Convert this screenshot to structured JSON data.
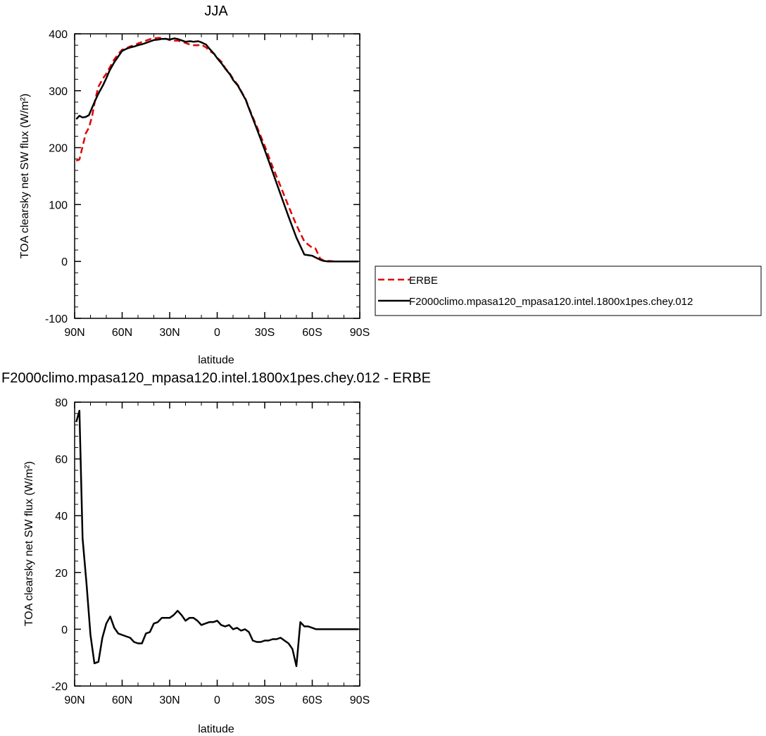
{
  "chart_data": [
    {
      "type": "line",
      "title": "JJA",
      "xlabel": "latitude",
      "ylabel": "TOA clearsky net SW flux (W/m²)",
      "xlim": [
        90,
        -90
      ],
      "ylim": [
        -100,
        400
      ],
      "x_ticks": [
        {
          "value": 90,
          "label": "90N"
        },
        {
          "value": 60,
          "label": "60N"
        },
        {
          "value": 30,
          "label": "30N"
        },
        {
          "value": 0,
          "label": "0"
        },
        {
          "value": -30,
          "label": "30S"
        },
        {
          "value": -60,
          "label": "60S"
        },
        {
          "value": -90,
          "label": "90S"
        }
      ],
      "y_ticks": [
        {
          "value": 400,
          "label": "400"
        },
        {
          "value": 300,
          "label": "300"
        },
        {
          "value": 200,
          "label": "200"
        },
        {
          "value": 100,
          "label": "100"
        },
        {
          "value": 0,
          "label": "0"
        },
        {
          "value": -100,
          "label": "-100"
        }
      ],
      "grid": false,
      "legend": "right",
      "series": [
        {
          "name": "ERBE",
          "color": "#e00000",
          "dash": "dashed",
          "x": [
            89,
            87,
            85,
            83,
            81,
            79,
            77,
            75,
            72,
            70,
            68,
            65,
            62,
            60,
            57,
            55,
            52,
            50,
            47,
            45,
            42,
            40,
            37,
            35,
            32,
            30,
            27,
            25,
            22,
            20,
            17,
            15,
            12,
            10,
            7,
            5,
            2,
            0,
            -3,
            -5,
            -8,
            -10,
            -13,
            -15,
            -18,
            -20,
            -25,
            -30,
            -35,
            -40,
            -45,
            -50,
            -55,
            -60,
            -62,
            -65,
            -67,
            -70,
            -75,
            -80,
            -85,
            -89
          ],
          "y": [
            177,
            179,
            202,
            225,
            235,
            255,
            285,
            307,
            322,
            330,
            340,
            355,
            366,
            372,
            375,
            378,
            380,
            383,
            386,
            388,
            391,
            392,
            393,
            393,
            391,
            389,
            388,
            388,
            386,
            384,
            381,
            380,
            380,
            381,
            376,
            370,
            365,
            358,
            350,
            340,
            330,
            321,
            310,
            300,
            285,
            270,
            237,
            203,
            166,
            132,
            97,
            64,
            35,
            24,
            23,
            5,
            2,
            1,
            0,
            0,
            0,
            0
          ]
        },
        {
          "name": "F2000climo.mpasa120_mpasa120.intel.1800x1pes.chey.012",
          "color": "#000000",
          "dash": "solid",
          "x": [
            89,
            87,
            85,
            83,
            81,
            79,
            77,
            75,
            72,
            70,
            68,
            65,
            62,
            60,
            57,
            55,
            52,
            50,
            47,
            45,
            42,
            40,
            37,
            35,
            32,
            30,
            27,
            25,
            22,
            20,
            17,
            15,
            12,
            10,
            7,
            5,
            2,
            0,
            -3,
            -5,
            -8,
            -10,
            -13,
            -15,
            -18,
            -20,
            -25,
            -30,
            -35,
            -40,
            -45,
            -50,
            -55,
            -60,
            -62,
            -65,
            -67,
            -70,
            -75,
            -80,
            -85,
            -89
          ],
          "y": [
            250,
            256,
            253,
            254,
            257,
            270,
            283,
            295,
            310,
            322,
            335,
            350,
            362,
            370,
            374,
            376,
            378,
            380,
            382,
            384,
            387,
            389,
            390,
            391,
            391,
            390,
            392,
            391,
            388,
            386,
            387,
            386,
            387,
            385,
            381,
            374,
            365,
            357,
            347,
            339,
            329,
            319,
            309,
            299,
            284,
            269,
            233,
            196,
            157,
            118,
            79,
            42,
            12,
            10,
            7,
            3,
            1,
            0,
            0,
            0,
            0,
            0
          ]
        }
      ]
    },
    {
      "type": "line",
      "title": "F2000climo.mpasa120_mpasa120.intel.1800x1pes.chey.012 - ERBE",
      "xlabel": "latitude",
      "ylabel": "TOA clearsky net SW flux (W/m²)",
      "xlim": [
        90,
        -90
      ],
      "ylim": [
        -20,
        80
      ],
      "x_ticks": [
        {
          "value": 90,
          "label": "90N"
        },
        {
          "value": 60,
          "label": "60N"
        },
        {
          "value": 30,
          "label": "30N"
        },
        {
          "value": 0,
          "label": "0"
        },
        {
          "value": -30,
          "label": "30S"
        },
        {
          "value": -60,
          "label": "60S"
        },
        {
          "value": -90,
          "label": "90S"
        }
      ],
      "y_ticks": [
        {
          "value": 80,
          "label": "80"
        },
        {
          "value": 60,
          "label": "60"
        },
        {
          "value": 40,
          "label": "40"
        },
        {
          "value": 20,
          "label": "20"
        },
        {
          "value": 0,
          "label": "0"
        },
        {
          "value": -20,
          "label": "-20"
        }
      ],
      "grid": false,
      "series": [
        {
          "color": "#000000",
          "dash": "solid",
          "x": [
            89,
            87,
            85,
            82.5,
            80,
            77.5,
            75,
            72.5,
            70,
            67.5,
            65,
            62.5,
            60,
            57.5,
            55,
            52.5,
            50,
            47.5,
            45,
            42.5,
            40,
            37.5,
            35,
            32.5,
            30,
            27.5,
            25,
            22.5,
            20,
            17.5,
            15,
            12.5,
            10,
            7.5,
            5,
            2.5,
            0,
            -2.5,
            -5,
            -7.5,
            -10,
            -12.5,
            -15,
            -17.5,
            -20,
            -22.5,
            -25,
            -27.5,
            -30,
            -32.5,
            -35,
            -37.5,
            -40,
            -42.5,
            -45,
            -47.5,
            -50,
            -52.5,
            -55,
            -57.5,
            -60,
            -62.5,
            -65,
            -67.5,
            -70,
            -72.5,
            -75,
            -77.5,
            -80,
            -82.5,
            -85,
            -87.5,
            -89
          ],
          "y": [
            73,
            77,
            32,
            16,
            -2,
            -12,
            -11.5,
            -3,
            2,
            4.5,
            0.5,
            -1.5,
            -2,
            -2.5,
            -3,
            -4.5,
            -5,
            -5,
            -1.5,
            -1,
            2,
            2.5,
            4,
            4,
            4,
            5,
            6.5,
            5,
            3,
            4,
            4,
            3,
            1.5,
            2,
            2.5,
            2.5,
            3,
            1.5,
            1,
            1.5,
            0,
            0.5,
            -0.5,
            0,
            -1,
            -4,
            -4.5,
            -4.5,
            -4,
            -4,
            -3.5,
            -3.5,
            -3,
            -4,
            -5,
            -7,
            -13,
            2.5,
            1,
            1,
            0.5,
            0,
            0,
            0,
            0,
            0,
            0,
            0,
            0,
            0,
            0,
            0,
            0
          ]
        }
      ]
    }
  ]
}
